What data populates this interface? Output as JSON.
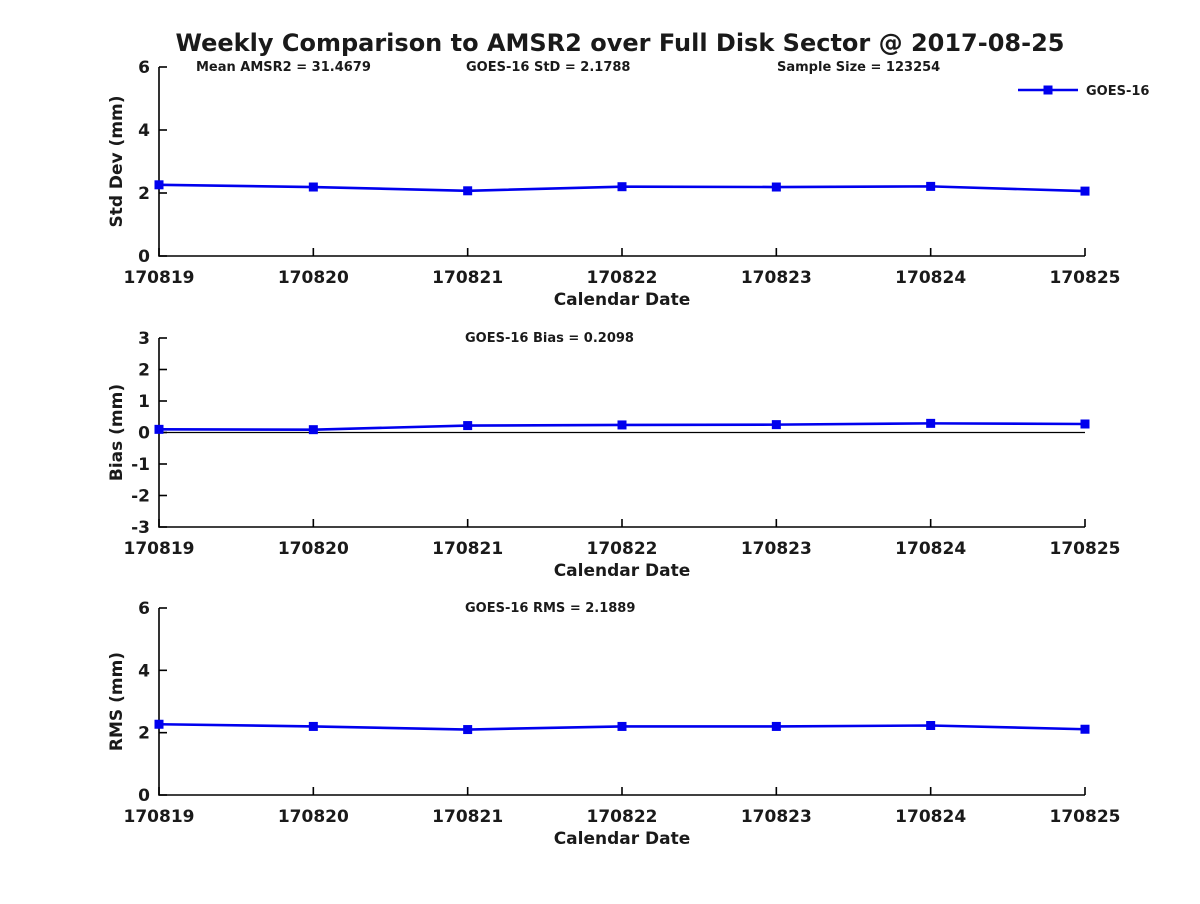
{
  "figure": {
    "title": "Weekly Comparison to AMSR2 over Full Disk Sector @ 2017-08-25"
  },
  "legend": {
    "label": "GOES-16"
  },
  "colors": {
    "series": "#0000EE",
    "axis": "#000000",
    "zero_line": "#000000",
    "text": "#1a1a1a",
    "background": "#FFFFFF"
  },
  "chart_data": [
    {
      "id": "std-dev",
      "type": "line",
      "annotations": [
        "Mean AMSR2 = 31.4679",
        "GOES-16 StD = 2.1788",
        "Sample Size = 123254"
      ],
      "xlabel": "Calendar Date",
      "ylabel": "Std Dev (mm)",
      "categories": [
        "170819",
        "170820",
        "170821",
        "170822",
        "170823",
        "170824",
        "170825"
      ],
      "series": [
        {
          "name": "GOES-16",
          "marker": "square",
          "values": [
            2.26,
            2.19,
            2.07,
            2.2,
            2.19,
            2.21,
            2.06
          ]
        }
      ],
      "ylim": [
        0,
        6
      ],
      "yticks": [
        0,
        2,
        4,
        6
      ],
      "zero_line": false,
      "legend_position": "top-right",
      "grid": false
    },
    {
      "id": "bias",
      "type": "line",
      "annotations": [
        "GOES-16 Bias  = 0.2098"
      ],
      "xlabel": "Calendar Date",
      "ylabel": "Bias (mm)",
      "categories": [
        "170819",
        "170820",
        "170821",
        "170822",
        "170823",
        "170824",
        "170825"
      ],
      "series": [
        {
          "name": "GOES-16",
          "marker": "square",
          "values": [
            0.1,
            0.09,
            0.22,
            0.24,
            0.25,
            0.29,
            0.27
          ]
        }
      ],
      "ylim": [
        -3,
        3
      ],
      "yticks": [
        -3,
        -2,
        -1,
        0,
        1,
        2,
        3
      ],
      "zero_line": true,
      "legend_position": "none",
      "grid": false
    },
    {
      "id": "rms",
      "type": "line",
      "annotations": [
        "GOES-16 RMS = 2.1889"
      ],
      "xlabel": "Calendar Date",
      "ylabel": "RMS (mm)",
      "categories": [
        "170819",
        "170820",
        "170821",
        "170822",
        "170823",
        "170824",
        "170825"
      ],
      "series": [
        {
          "name": "GOES-16",
          "marker": "square",
          "values": [
            2.27,
            2.2,
            2.1,
            2.2,
            2.2,
            2.23,
            2.11
          ]
        }
      ],
      "ylim": [
        0,
        6
      ],
      "yticks": [
        0,
        2,
        4,
        6
      ],
      "zero_line": false,
      "legend_position": "none",
      "grid": false
    }
  ]
}
